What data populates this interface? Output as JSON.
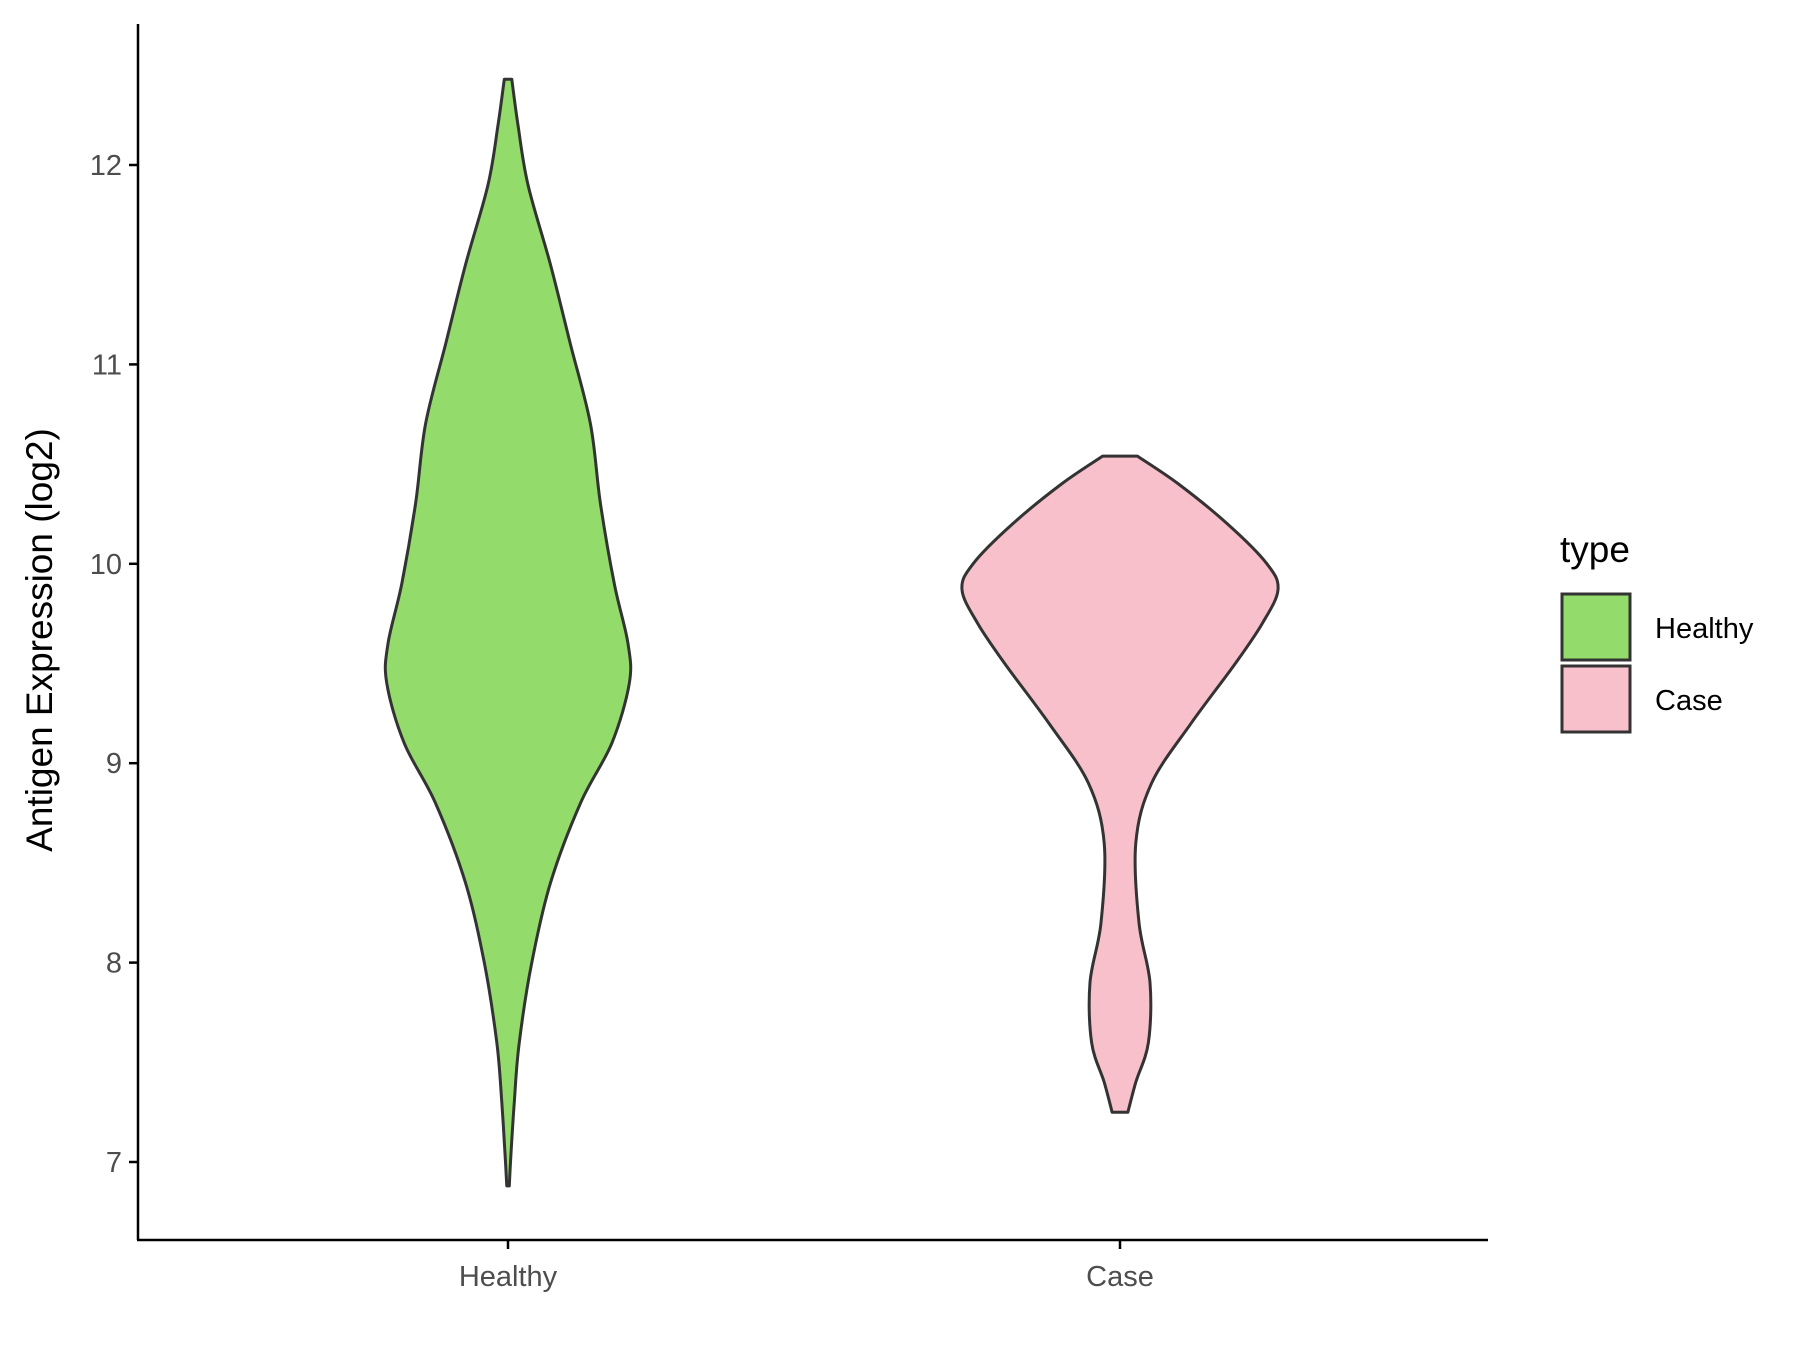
{
  "chart_data": {
    "type": "violin",
    "title": "",
    "xlabel": "",
    "ylabel": "Antigen Expression (log2)",
    "ylim": [
      6.6,
      12.7
    ],
    "y_ticks": [
      "7",
      "8",
      "9",
      "10",
      "11",
      "12"
    ],
    "categories": [
      "Healthy",
      "Case"
    ],
    "legend": {
      "title": "type",
      "position": "right",
      "entries": [
        "Healthy",
        "Case"
      ]
    },
    "grid": false,
    "series": [
      {
        "name": "Healthy",
        "color": "#93dc6b",
        "min": 6.88,
        "max": 12.43,
        "density_profile": [
          [
            6.88,
            0.01
          ],
          [
            7.0,
            0.02
          ],
          [
            7.3,
            0.05
          ],
          [
            7.6,
            0.09
          ],
          [
            8.0,
            0.19
          ],
          [
            8.4,
            0.34
          ],
          [
            8.8,
            0.58
          ],
          [
            9.1,
            0.83
          ],
          [
            9.4,
            0.97
          ],
          [
            9.6,
            0.96
          ],
          [
            9.9,
            0.85
          ],
          [
            10.3,
            0.74
          ],
          [
            10.7,
            0.66
          ],
          [
            11.1,
            0.5
          ],
          [
            11.5,
            0.34
          ],
          [
            11.9,
            0.16
          ],
          [
            12.2,
            0.08
          ],
          [
            12.43,
            0.03
          ]
        ]
      },
      {
        "name": "Case",
        "color": "#f8c0cb",
        "min": 7.25,
        "max": 10.54,
        "density_profile": [
          [
            7.25,
            0.05
          ],
          [
            7.4,
            0.1
          ],
          [
            7.6,
            0.18
          ],
          [
            7.9,
            0.19
          ],
          [
            8.2,
            0.12
          ],
          [
            8.6,
            0.1
          ],
          [
            8.9,
            0.2
          ],
          [
            9.2,
            0.45
          ],
          [
            9.5,
            0.73
          ],
          [
            9.7,
            0.9
          ],
          [
            9.87,
            1.0
          ],
          [
            10.0,
            0.93
          ],
          [
            10.2,
            0.68
          ],
          [
            10.4,
            0.37
          ],
          [
            10.54,
            0.11
          ]
        ]
      }
    ]
  }
}
